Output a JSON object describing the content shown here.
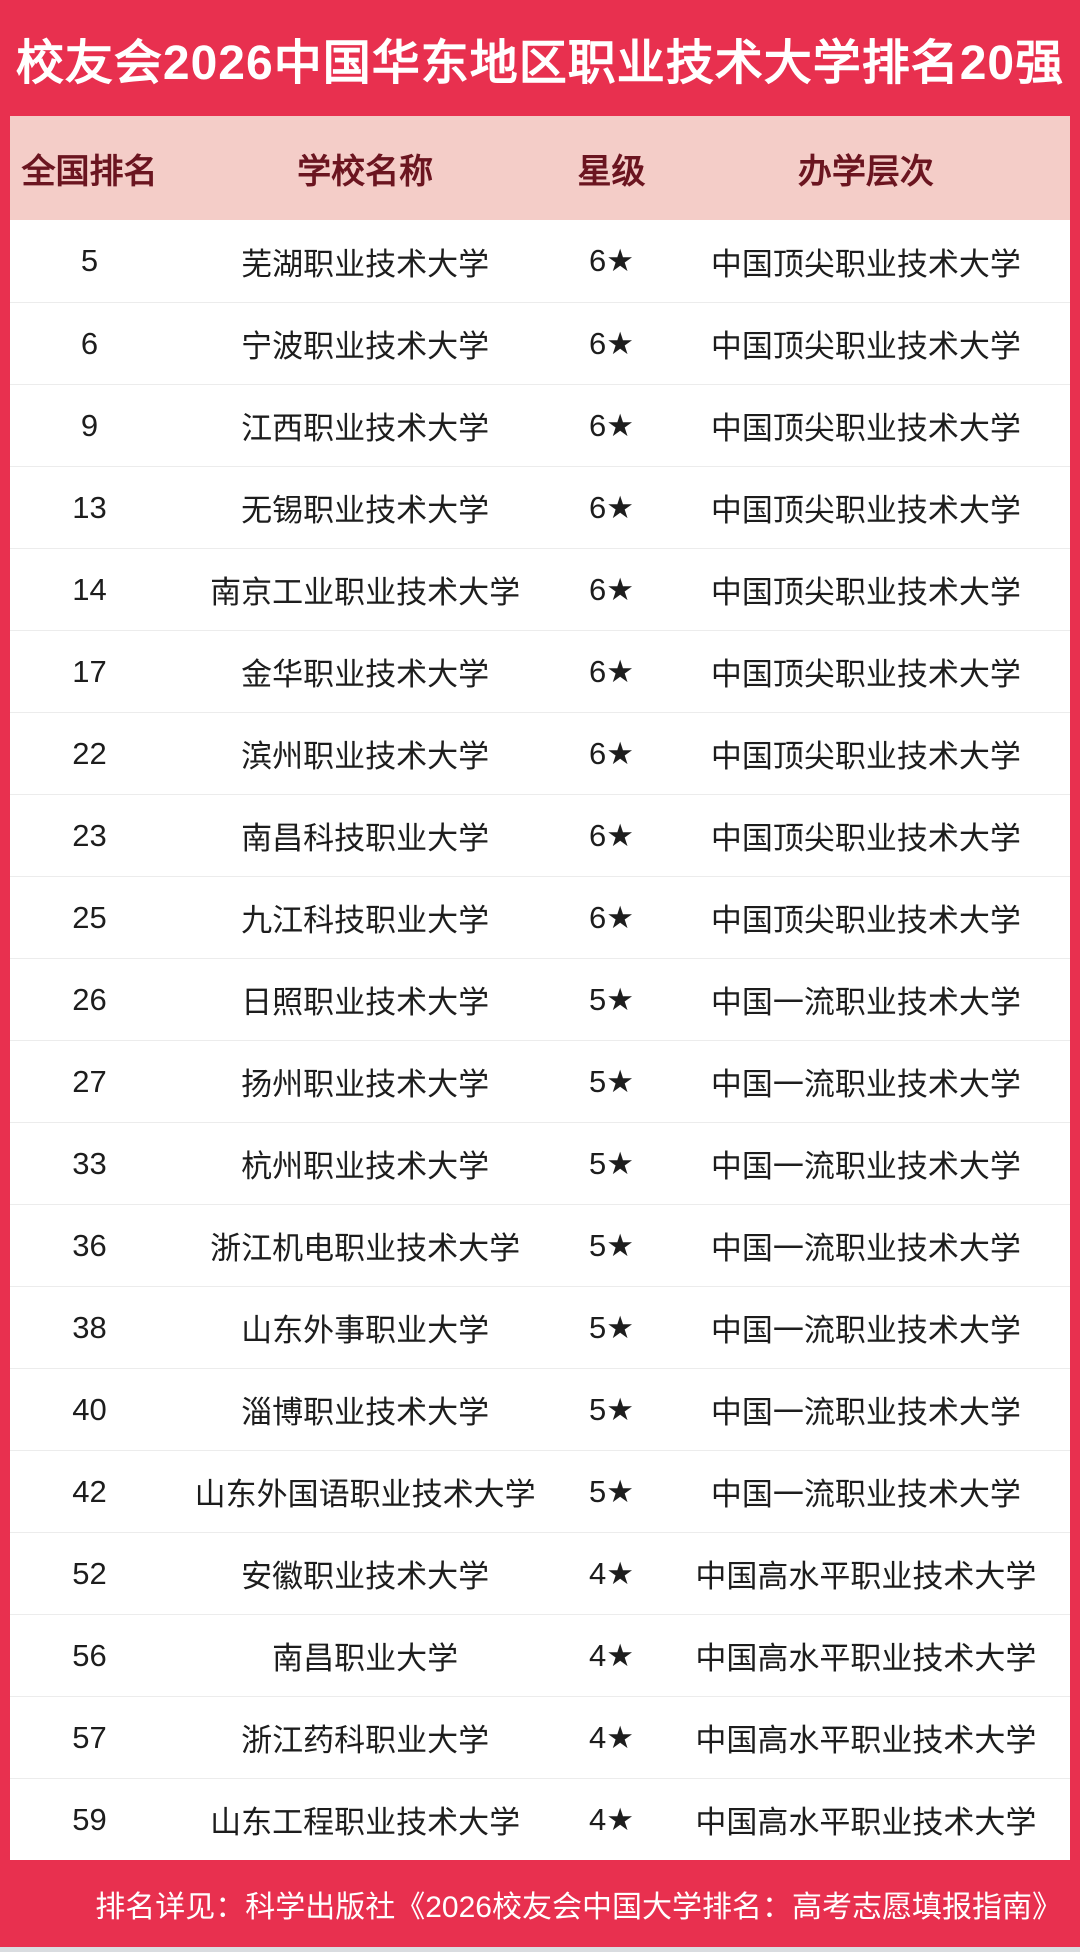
{
  "page": {
    "title": "校友会2026中国华东地区职业技术大学排名20强",
    "footer": "排名详见：科学出版社《2026校友会中国大学排名：高考志愿填报指南》"
  },
  "colors": {
    "accent_red": "#e8304f",
    "header_pink": "#f4cdc8",
    "header_text_maroon": "#6b1520",
    "body_text": "#1d1d1d",
    "row_divider": "#ececec",
    "title_text": "#ffffff"
  },
  "table": {
    "columns": [
      "全国排名",
      "学校名称",
      "星级",
      "办学层次"
    ],
    "rows": [
      {
        "rank": "5",
        "school": "芜湖职业技术大学",
        "stars": "6★",
        "level": "中国顶尖职业技术大学"
      },
      {
        "rank": "6",
        "school": "宁波职业技术大学",
        "stars": "6★",
        "level": "中国顶尖职业技术大学"
      },
      {
        "rank": "9",
        "school": "江西职业技术大学",
        "stars": "6★",
        "level": "中国顶尖职业技术大学"
      },
      {
        "rank": "13",
        "school": "无锡职业技术大学",
        "stars": "6★",
        "level": "中国顶尖职业技术大学"
      },
      {
        "rank": "14",
        "school": "南京工业职业技术大学",
        "stars": "6★",
        "level": "中国顶尖职业技术大学"
      },
      {
        "rank": "17",
        "school": "金华职业技术大学",
        "stars": "6★",
        "level": "中国顶尖职业技术大学"
      },
      {
        "rank": "22",
        "school": "滨州职业技术大学",
        "stars": "6★",
        "level": "中国顶尖职业技术大学"
      },
      {
        "rank": "23",
        "school": "南昌科技职业大学",
        "stars": "6★",
        "level": "中国顶尖职业技术大学"
      },
      {
        "rank": "25",
        "school": "九江科技职业大学",
        "stars": "6★",
        "level": "中国顶尖职业技术大学"
      },
      {
        "rank": "26",
        "school": "日照职业技术大学",
        "stars": "5★",
        "level": "中国一流职业技术大学"
      },
      {
        "rank": "27",
        "school": "扬州职业技术大学",
        "stars": "5★",
        "level": "中国一流职业技术大学"
      },
      {
        "rank": "33",
        "school": "杭州职业技术大学",
        "stars": "5★",
        "level": "中国一流职业技术大学"
      },
      {
        "rank": "36",
        "school": "浙江机电职业技术大学",
        "stars": "5★",
        "level": "中国一流职业技术大学"
      },
      {
        "rank": "38",
        "school": "山东外事职业大学",
        "stars": "5★",
        "level": "中国一流职业技术大学"
      },
      {
        "rank": "40",
        "school": "淄博职业技术大学",
        "stars": "5★",
        "level": "中国一流职业技术大学"
      },
      {
        "rank": "42",
        "school": "山东外国语职业技术大学",
        "stars": "5★",
        "level": "中国一流职业技术大学"
      },
      {
        "rank": "52",
        "school": "安徽职业技术大学",
        "stars": "4★",
        "level": "中国高水平职业技术大学"
      },
      {
        "rank": "56",
        "school": "南昌职业大学",
        "stars": "4★",
        "level": "中国高水平职业技术大学"
      },
      {
        "rank": "57",
        "school": "浙江药科职业大学",
        "stars": "4★",
        "level": "中国高水平职业技术大学"
      },
      {
        "rank": "59",
        "school": "山东工程职业技术大学",
        "stars": "4★",
        "level": "中国高水平职业技术大学"
      }
    ]
  }
}
